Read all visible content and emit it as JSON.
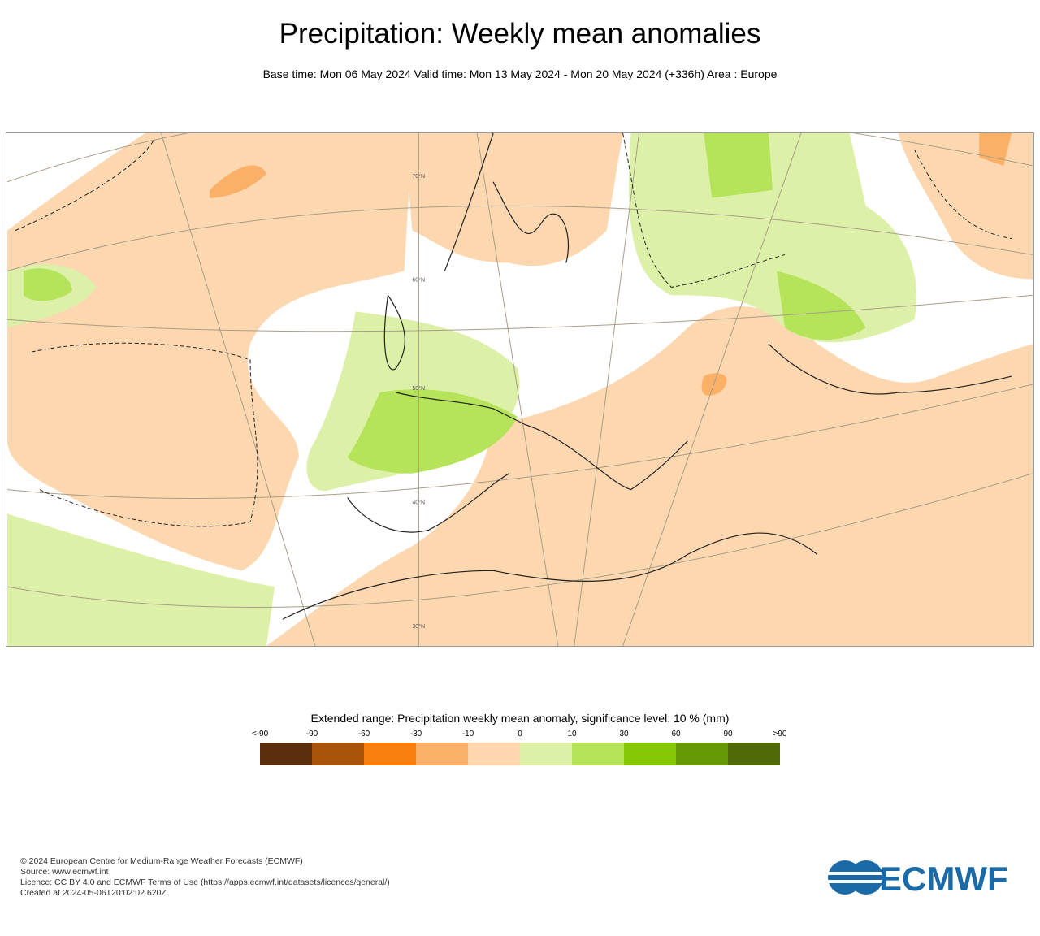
{
  "title": "Precipitation: Weekly mean anomalies",
  "subtitle": "Base time: Mon 06 May 2024 Valid time: Mon 13 May 2024 - Mon 20 May 2024 (+336h) Area : Europe",
  "map": {
    "latitude_labels": [
      "70°N",
      "60°N",
      "50°N",
      "40°N",
      "30°N"
    ]
  },
  "legend": {
    "title": "Extended range: Precipitation weekly mean anomaly, significance level: 10 % (mm)",
    "ticks": [
      "<-90",
      "-90",
      "-60",
      "-30",
      "-10",
      "0",
      "10",
      "30",
      "60",
      "90",
      ">90"
    ],
    "colors": [
      "#5a2d0c",
      "#a8520a",
      "#f97f0f",
      "#fbb068",
      "#fdd7b0",
      "#dcf0a8",
      "#b5e35a",
      "#86c806",
      "#659a06",
      "#4f6a06"
    ]
  },
  "footer": {
    "lines": [
      "© 2024 European Centre for Medium-Range Weather Forecasts (ECMWF)",
      "Source: www.ecmwf.int",
      "Licence: CC BY 4.0 and ECMWF Terms of Use (https://apps.ecmwf.int/datasets/licences/general/)",
      "Created at 2024-05-06T20:02:02.620Z"
    ],
    "logo_text": "ECMWF",
    "logo_color": "#1a6aa8"
  }
}
